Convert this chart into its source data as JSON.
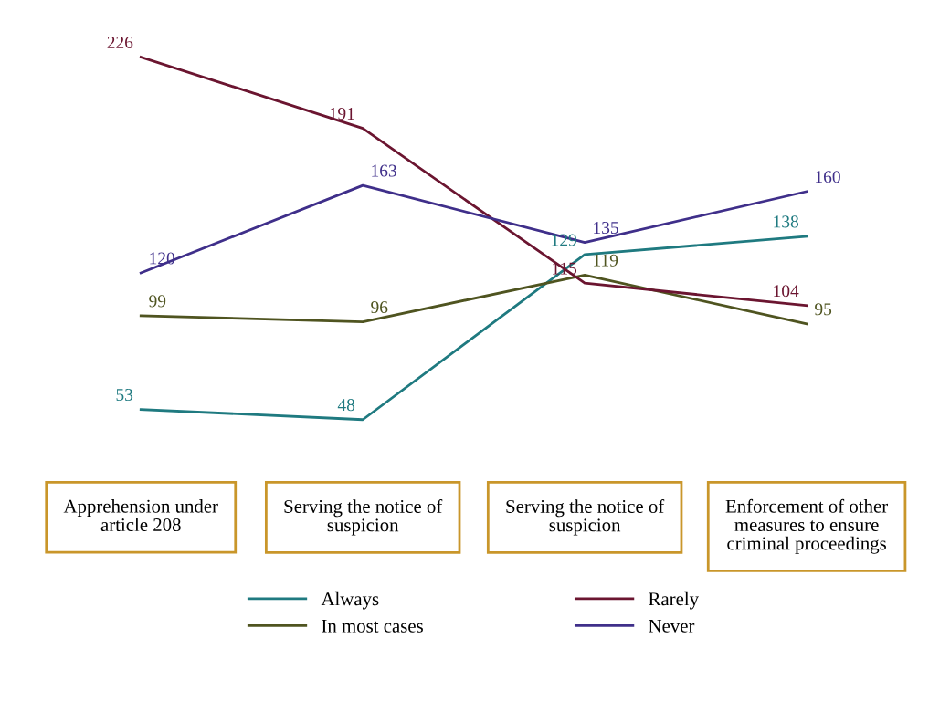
{
  "chart_data": {
    "type": "line",
    "categories": [
      "Apprehension under\narticle 208",
      "Serving the notice of\nsuspicion",
      "Serving the notice of\nsuspicion",
      "Enforcement of other\nmeasures to ensure\ncriminal proceedings"
    ],
    "series": [
      {
        "name": "Always",
        "color": "#1f7a80",
        "values": [
          53,
          48,
          129,
          138
        ]
      },
      {
        "name": "In most cases",
        "color": "#4f5420",
        "values": [
          99,
          96,
          119,
          95
        ]
      },
      {
        "name": "Rarely",
        "color": "#6b1530",
        "values": [
          226,
          191,
          115,
          104
        ]
      },
      {
        "name": "Never",
        "color": "#3f2f8a",
        "values": [
          120,
          163,
          135,
          160
        ]
      }
    ],
    "data_labels": true,
    "legend": "bottom",
    "grid": false,
    "line_style": "solid",
    "tick_labels": "x"
  }
}
